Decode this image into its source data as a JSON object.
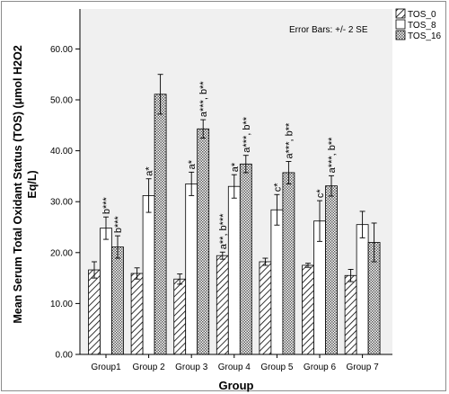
{
  "chart_data": {
    "type": "bar",
    "xlabel": "Group",
    "ylabel": "Mean Serum Total Oxidant Status (TOS) (μmol H2O2 Eq/L)",
    "ylabel_lines": [
      "Mean Serum Total Oxidant Status (TOS) (μmol H2O2",
      "Eq/L)"
    ],
    "annotation": "Error Bars: +/- 2 SE",
    "ylim": [
      0,
      65
    ],
    "yticks": [
      "0.00",
      "10.00",
      "20.00",
      "30.00",
      "40.00",
      "50.00",
      "60.00"
    ],
    "legend_position": "top-right",
    "categories": [
      "Group1",
      "Group 2",
      "Group 3",
      "Group 4",
      "Group 5",
      "Group 6",
      "Group 7"
    ],
    "series": [
      {
        "name": "TOS_0",
        "pattern": "diagonal-hatch",
        "values": [
          16.6,
          15.9,
          14.8,
          19.4,
          18.2,
          17.5,
          15.5
        ],
        "error": [
          1.6,
          1.1,
          1.0,
          0.7,
          0.7,
          0.4,
          1.2
        ]
      },
      {
        "name": "TOS_8",
        "pattern": "white",
        "values": [
          24.8,
          31.2,
          33.5,
          33.0,
          28.4,
          26.2,
          25.5
        ],
        "error": [
          2.2,
          3.3,
          2.3,
          2.3,
          3.0,
          4.0,
          2.6
        ]
      },
      {
        "name": "TOS_16",
        "pattern": "checker",
        "values": [
          21.1,
          51.1,
          44.3,
          37.4,
          35.7,
          33.1,
          22.0
        ],
        "error": [
          2.2,
          3.9,
          1.8,
          1.7,
          2.2,
          2.0,
          3.8
        ]
      }
    ],
    "significance_labels": [
      {
        "group": 0,
        "series": 1,
        "text": "b***"
      },
      {
        "group": 0,
        "series": 2,
        "text": "b***"
      },
      {
        "group": 1,
        "series": 1,
        "text": "a*"
      },
      {
        "group": 2,
        "series": 1,
        "text": "a*"
      },
      {
        "group": 2,
        "series": 2,
        "text": "a***, b**"
      },
      {
        "group": 3,
        "series": 0,
        "text": "a**, b***"
      },
      {
        "group": 3,
        "series": 1,
        "text": "a*"
      },
      {
        "group": 3,
        "series": 2,
        "text": "a***, b**"
      },
      {
        "group": 4,
        "series": 1,
        "text": "c*"
      },
      {
        "group": 4,
        "series": 2,
        "text": "a***, b**"
      },
      {
        "group": 5,
        "series": 1,
        "text": "c*"
      },
      {
        "group": 5,
        "series": 2,
        "text": "a***, b**"
      }
    ],
    "colors": {
      "plot_background": "#f0f0f0",
      "bar_fill": "#ffffff",
      "bar_stroke": "#000000",
      "axis": "#000000"
    }
  }
}
